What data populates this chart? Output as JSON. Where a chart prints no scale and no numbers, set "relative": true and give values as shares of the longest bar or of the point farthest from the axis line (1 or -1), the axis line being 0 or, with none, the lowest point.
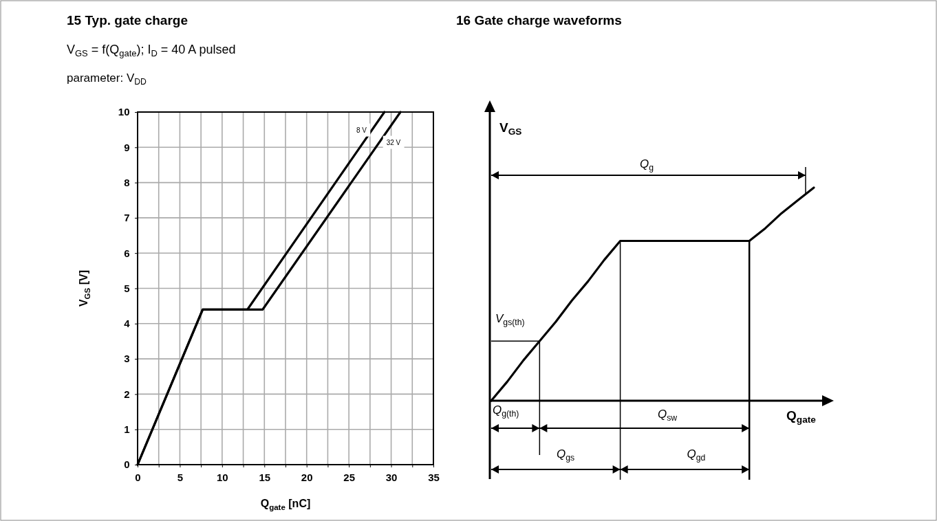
{
  "chart_data": [
    {
      "type": "line",
      "title": "15 Typ. gate charge",
      "subtitle": "V$_{GS}$ = f(Q$_{gate}$); I$_{D}$ = 40 A pulsed",
      "annotations": [
        "parameter: V$_{DD}$"
      ],
      "xlabel": "Q$_{gate}$ [nC]",
      "ylabel": "V$_{GS}$ [V]",
      "xlim": [
        0,
        35
      ],
      "ylim": [
        0,
        10
      ],
      "xticks": [
        0,
        {
          "value": 2.5,
          "label": null
        },
        5,
        {
          "value": 7.5,
          "label": null
        },
        10,
        {
          "value": 12.5,
          "label": null
        },
        15,
        {
          "value": 17.5,
          "label": null
        },
        20,
        {
          "value": 22.5,
          "label": null
        },
        25,
        {
          "value": 27.5,
          "label": null
        },
        30,
        {
          "value": 32.5,
          "label": null
        },
        35
      ],
      "yticks": [
        0,
        1,
        2,
        3,
        4,
        5,
        6,
        7,
        8,
        9,
        10
      ],
      "grid": true,
      "legend": false,
      "marker": "none",
      "line_style": "solid",
      "series": [
        {
          "name": "8 V",
          "color": "#000000",
          "x": [
            0,
            7.7,
            13.0,
            29.2
          ],
          "values": [
            0,
            4.4,
            4.4,
            10
          ]
        },
        {
          "name": "32 V",
          "color": "#000000",
          "x": [
            0,
            7.7,
            14.8,
            31.1
          ],
          "values": [
            0,
            4.4,
            4.4,
            10
          ]
        }
      ]
    },
    {
      "type": "line",
      "title": "16 Gate charge waveforms",
      "relative": true,
      "xlabel": "Q$_{gate}$",
      "ylabel": "V$_{GS}$",
      "legend": false,
      "marker": "none",
      "line_style": "solid",
      "categories": [
        null,
        null,
        null,
        null,
        null,
        null,
        null,
        null,
        null,
        null,
        null,
        null,
        null,
        null,
        null,
        null,
        null,
        null,
        null,
        null,
        null
      ],
      "annotations": [
        "Q$_{g}$",
        "V$_{gs(th)}$",
        "Q$_{g(th)}$",
        "Q$_{sw}$",
        "Q$_{gs}$",
        "Q$_{gd}$"
      ],
      "series": [
        {
          "color": "#000000",
          "values": [
            0,
            0.09,
            0.19,
            0.28,
            0.37,
            0.47,
            0.56,
            0.66,
            0.75,
            0.75,
            0.75,
            0.75,
            0.75,
            0.75,
            0.75,
            0.75,
            0.75,
            0.81,
            0.88,
            0.94,
            1
          ]
        }
      ]
    }
  ]
}
